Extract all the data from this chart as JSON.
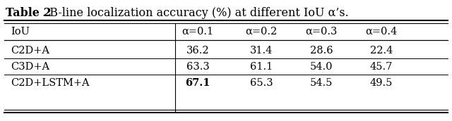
{
  "title_bold": "Table 2",
  "title_rest": ". B-line localization accuracy (%) at different IoU α’s.",
  "col_headers": [
    "IoU",
    "α=0.1",
    "α=0.2",
    "α=0.3",
    "α=0.4"
  ],
  "rows": [
    [
      "C2D+A",
      "36.2",
      "31.4",
      "28.6",
      "22.4"
    ],
    [
      "C3D+A",
      "63.3",
      "61.1",
      "54.0",
      "45.7"
    ],
    [
      "C2D+LSTM+A",
      "67.1",
      "65.3",
      "54.5",
      "49.5"
    ]
  ],
  "bold_cell": [
    2,
    1
  ],
  "bg_color": "#ffffff",
  "font_size_title": 11.5,
  "font_size_table": 10.5
}
